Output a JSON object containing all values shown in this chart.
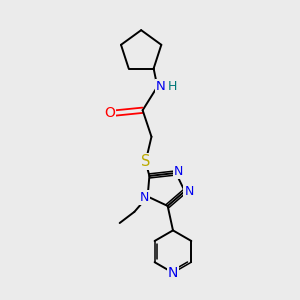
{
  "background_color": "#ebebeb",
  "atom_colors": {
    "N": "#0000ee",
    "O": "#ff0000",
    "S": "#bbaa00",
    "C": "#000000",
    "H": "#007777"
  },
  "bond_color": "#000000",
  "bond_width": 1.4,
  "figsize": [
    3.0,
    3.0
  ],
  "dpi": 100
}
